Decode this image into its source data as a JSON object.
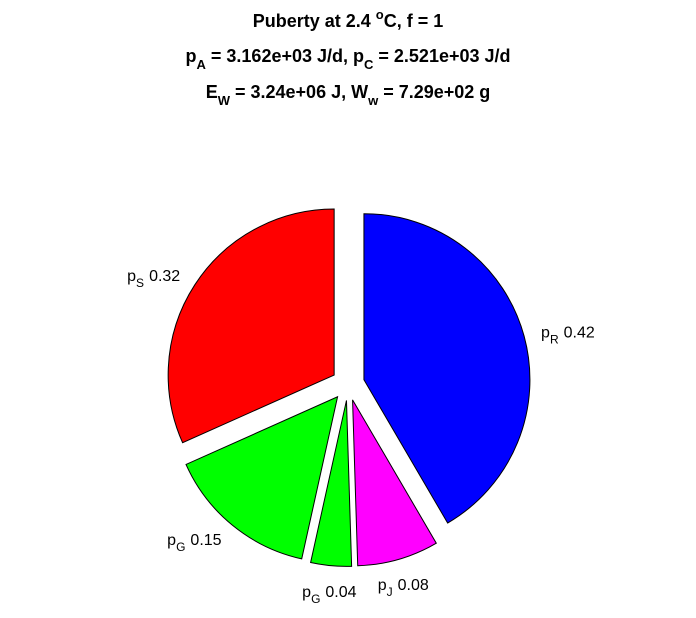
{
  "chart_data": {
    "type": "pie",
    "title_lines": [
      [
        {
          "text": "Puberty at 2.4 "
        },
        {
          "sup": "o"
        },
        {
          "text": "C, f = 1"
        }
      ],
      [
        {
          "text": "p"
        },
        {
          "sub": "A"
        },
        {
          "text": " = 3.162e+03 J/d,  p"
        },
        {
          "sub": "C"
        },
        {
          "text": " = 2.521e+03 J/d"
        }
      ],
      [
        {
          "text": "E"
        },
        {
          "sub": "W"
        },
        {
          "text": " = 3.24e+06 J, W"
        },
        {
          "sub": "w"
        },
        {
          "text": " = 7.29e+02 g"
        }
      ]
    ],
    "labels": [
      {
        "text": "p",
        "sub": "R"
      },
      {
        "text": "p",
        "sub": "J"
      },
      {
        "text": "p",
        "sub": "G"
      },
      {
        "text": "p",
        "sub": "G"
      },
      {
        "text": "p",
        "sub": "S"
      }
    ],
    "values": [
      0.42,
      0.08,
      0.04,
      0.15,
      0.32
    ],
    "colors": [
      "#0000ff",
      "#ff00ff",
      "#00ff00",
      "#00ff00",
      "#ff0000"
    ],
    "explode": true
  }
}
